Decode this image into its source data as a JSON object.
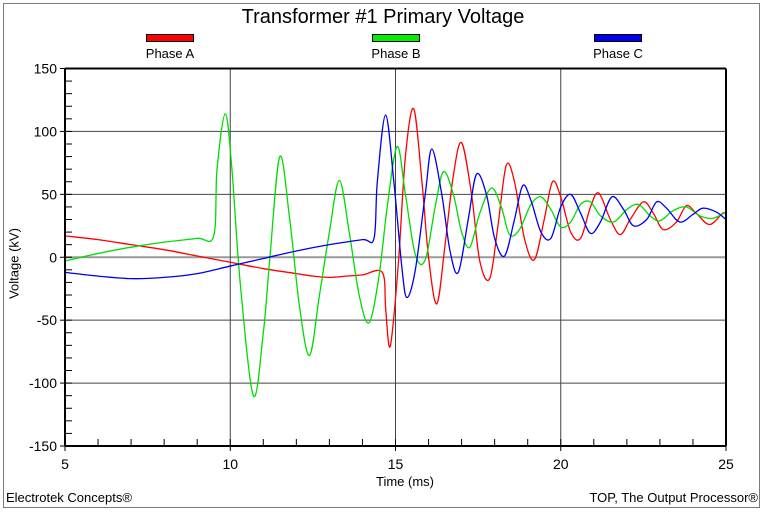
{
  "chart_data": {
    "type": "line",
    "title": "Transformer #1 Primary Voltage",
    "xlabel": "Time (ms)",
    "ylabel": "Voltage (kV)",
    "xlim": [
      5,
      25
    ],
    "ylim": [
      -150,
      150
    ],
    "x_ticks": [
      5,
      10,
      15,
      20,
      25
    ],
    "y_ticks": [
      150,
      100,
      50,
      0,
      -50,
      -100,
      -150
    ],
    "grid": true,
    "legend_position": "top",
    "series": [
      {
        "name": "Phase A",
        "color": "#ff0000",
        "points": [
          [
            5,
            17
          ],
          [
            6,
            14
          ],
          [
            7,
            10
          ],
          [
            8,
            6
          ],
          [
            9,
            1
          ],
          [
            10,
            -4
          ],
          [
            11,
            -9
          ],
          [
            12,
            -13
          ],
          [
            12.5,
            -15
          ],
          [
            13,
            -16
          ],
          [
            13.5,
            -15
          ],
          [
            14,
            -14
          ],
          [
            14.6,
            -12
          ],
          [
            14.7,
            -40
          ],
          [
            14.8,
            -70
          ],
          [
            14.9,
            -60
          ],
          [
            15.1,
            0
          ],
          [
            15.3,
            80
          ],
          [
            15.55,
            118
          ],
          [
            15.8,
            60
          ],
          [
            16.0,
            0
          ],
          [
            16.25,
            -37
          ],
          [
            16.5,
            10
          ],
          [
            16.75,
            65
          ],
          [
            17.0,
            91
          ],
          [
            17.3,
            50
          ],
          [
            17.55,
            -3
          ],
          [
            17.85,
            -17
          ],
          [
            18.1,
            25
          ],
          [
            18.35,
            73
          ],
          [
            18.6,
            60
          ],
          [
            18.9,
            15
          ],
          [
            19.2,
            -2
          ],
          [
            19.5,
            30
          ],
          [
            19.75,
            60
          ],
          [
            20.0,
            48
          ],
          [
            20.3,
            20
          ],
          [
            20.6,
            15
          ],
          [
            20.9,
            40
          ],
          [
            21.15,
            51
          ],
          [
            21.5,
            30
          ],
          [
            21.8,
            18
          ],
          [
            22.1,
            30
          ],
          [
            22.5,
            44
          ],
          [
            22.8,
            35
          ],
          [
            23.1,
            22
          ],
          [
            23.5,
            28
          ],
          [
            23.8,
            41
          ],
          [
            24.1,
            35
          ],
          [
            24.5,
            26
          ],
          [
            24.9,
            35
          ],
          [
            25,
            34
          ]
        ]
      },
      {
        "name": "Phase B",
        "color": "#00dd00",
        "points": [
          [
            5,
            -3
          ],
          [
            6,
            3
          ],
          [
            7,
            8
          ],
          [
            8,
            12
          ],
          [
            9,
            15
          ],
          [
            9.5,
            17
          ],
          [
            9.6,
            70
          ],
          [
            9.85,
            114
          ],
          [
            10.05,
            70
          ],
          [
            10.3,
            -20
          ],
          [
            10.7,
            -110
          ],
          [
            11.0,
            -60
          ],
          [
            11.2,
            0
          ],
          [
            11.5,
            80
          ],
          [
            11.8,
            30
          ],
          [
            12.1,
            -40
          ],
          [
            12.4,
            -78
          ],
          [
            12.7,
            -30
          ],
          [
            13.0,
            20
          ],
          [
            13.3,
            61
          ],
          [
            13.6,
            20
          ],
          [
            13.9,
            -30
          ],
          [
            14.2,
            -52
          ],
          [
            14.5,
            -15
          ],
          [
            14.75,
            40
          ],
          [
            15.05,
            88
          ],
          [
            15.3,
            50
          ],
          [
            15.6,
            2
          ],
          [
            15.9,
            -2
          ],
          [
            16.2,
            40
          ],
          [
            16.45,
            68
          ],
          [
            16.75,
            50
          ],
          [
            17.0,
            20
          ],
          [
            17.25,
            8
          ],
          [
            17.55,
            35
          ],
          [
            17.9,
            55
          ],
          [
            18.2,
            40
          ],
          [
            18.45,
            18
          ],
          [
            18.75,
            22
          ],
          [
            19.1,
            42
          ],
          [
            19.4,
            48
          ],
          [
            19.7,
            38
          ],
          [
            20.0,
            24
          ],
          [
            20.3,
            28
          ],
          [
            20.6,
            42
          ],
          [
            20.9,
            44
          ],
          [
            21.2,
            33
          ],
          [
            21.6,
            28
          ],
          [
            22.0,
            38
          ],
          [
            22.35,
            42
          ],
          [
            22.7,
            33
          ],
          [
            23.0,
            29
          ],
          [
            23.4,
            37
          ],
          [
            23.8,
            40
          ],
          [
            24.2,
            33
          ],
          [
            24.6,
            31
          ],
          [
            25,
            36
          ]
        ]
      },
      {
        "name": "Phase C",
        "color": "#0000ee",
        "points": [
          [
            5,
            -12
          ],
          [
            6,
            -15
          ],
          [
            7,
            -17
          ],
          [
            8,
            -16
          ],
          [
            9,
            -13
          ],
          [
            10,
            -7
          ],
          [
            11,
            -1
          ],
          [
            12,
            5
          ],
          [
            13,
            10
          ],
          [
            14,
            14
          ],
          [
            14.35,
            15
          ],
          [
            14.45,
            60
          ],
          [
            14.7,
            113
          ],
          [
            14.95,
            60
          ],
          [
            15.2,
            -10
          ],
          [
            15.35,
            -32
          ],
          [
            15.6,
            -10
          ],
          [
            15.9,
            50
          ],
          [
            16.1,
            86
          ],
          [
            16.4,
            50
          ],
          [
            16.65,
            5
          ],
          [
            16.9,
            -12
          ],
          [
            17.2,
            30
          ],
          [
            17.45,
            66
          ],
          [
            17.75,
            50
          ],
          [
            18.0,
            15
          ],
          [
            18.3,
            1
          ],
          [
            18.6,
            30
          ],
          [
            18.85,
            57
          ],
          [
            19.1,
            45
          ],
          [
            19.4,
            20
          ],
          [
            19.7,
            15
          ],
          [
            20.0,
            40
          ],
          [
            20.3,
            50
          ],
          [
            20.6,
            35
          ],
          [
            20.9,
            19
          ],
          [
            21.2,
            28
          ],
          [
            21.55,
            48
          ],
          [
            21.9,
            38
          ],
          [
            22.2,
            25
          ],
          [
            22.6,
            30
          ],
          [
            22.9,
            44
          ],
          [
            23.2,
            39
          ],
          [
            23.6,
            28
          ],
          [
            24.0,
            34
          ],
          [
            24.3,
            39
          ],
          [
            24.7,
            36
          ],
          [
            25,
            30
          ]
        ]
      }
    ]
  },
  "footer": {
    "left": "Electrotek Concepts®",
    "right": "TOP, The Output Processor®"
  }
}
